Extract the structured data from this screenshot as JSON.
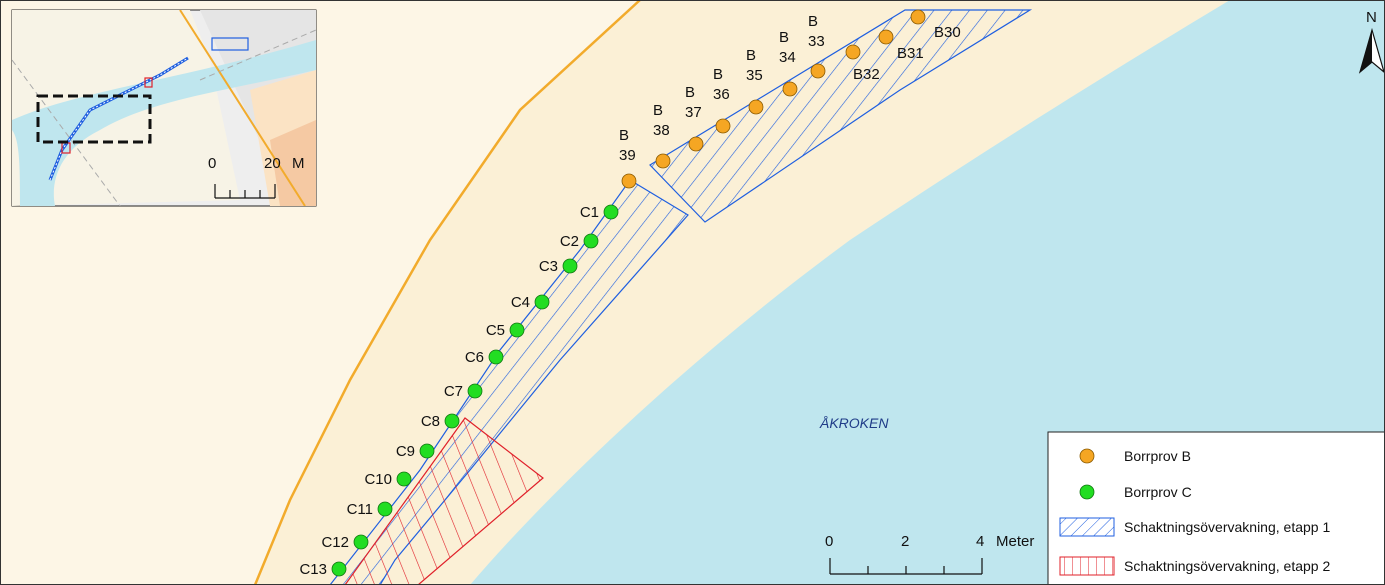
{
  "map": {
    "water_label": "ÅKROKEN",
    "north_label": "N",
    "colors": {
      "land": "#fbf0d6",
      "land_outer": "#fdf6e6",
      "water": "#bfe6ee",
      "road": "#f2ab2c",
      "etapp1": "#1f5fe0",
      "etapp2": "#e0202a",
      "borrprov_b": "#f5a623",
      "borrprov_c": "#22dd22"
    }
  },
  "points_b": [
    {
      "label": "B30",
      "lines": [
        "B30"
      ]
    },
    {
      "label": "B31",
      "lines": [
        "B31"
      ]
    },
    {
      "label": "B32",
      "lines": [
        "B32"
      ]
    },
    {
      "label": "B33",
      "lines": [
        "B",
        "33"
      ]
    },
    {
      "label": "B34",
      "lines": [
        "B",
        "34"
      ]
    },
    {
      "label": "B35",
      "lines": [
        "B",
        "35"
      ]
    },
    {
      "label": "B36",
      "lines": [
        "B",
        "36"
      ]
    },
    {
      "label": "B37",
      "lines": [
        "B",
        "37"
      ]
    },
    {
      "label": "B38",
      "lines": [
        "B",
        "38"
      ]
    },
    {
      "label": "B39",
      "lines": [
        "B",
        "39"
      ]
    }
  ],
  "points_c": [
    "C1",
    "C2",
    "C3",
    "C4",
    "C5",
    "C6",
    "C7",
    "C8",
    "C9",
    "C10",
    "C11",
    "C12",
    "C13"
  ],
  "scale_bar": {
    "ticks": [
      "0",
      "2",
      "4"
    ],
    "unit": "Meter"
  },
  "inset": {
    "scale_ticks": [
      "0",
      "20"
    ],
    "unit": "M"
  },
  "legend": {
    "items": [
      {
        "label": "Borrprov B",
        "symbol": "circle-orange"
      },
      {
        "label": "Borrprov C",
        "symbol": "circle-green"
      },
      {
        "label": "Schaktningsövervakning, etapp 1",
        "symbol": "hatch-blue"
      },
      {
        "label": "Schaktningsövervakning, etapp 2",
        "symbol": "hatch-red"
      }
    ]
  }
}
